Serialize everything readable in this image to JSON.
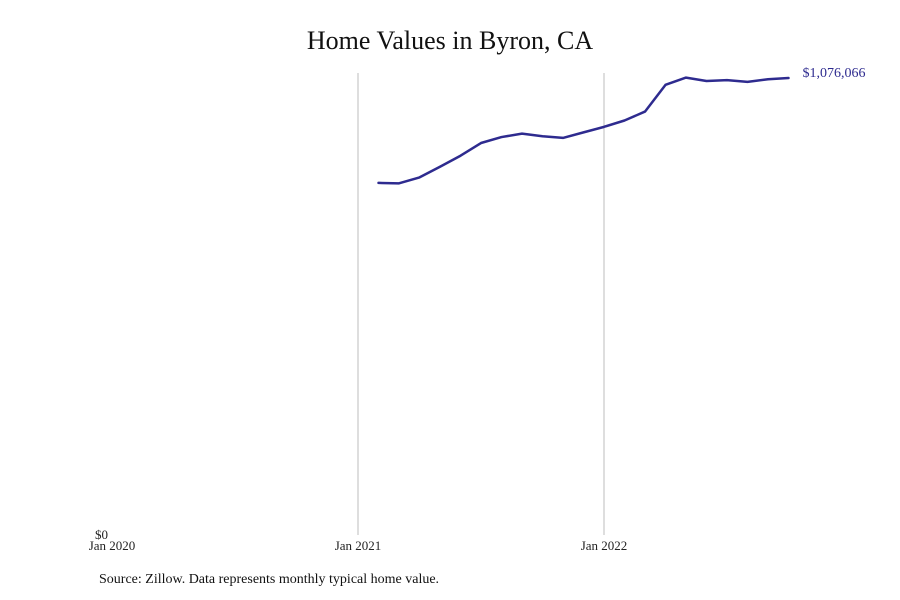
{
  "chart_data": {
    "type": "line",
    "title": "Home Values in Byron, CA",
    "xlabel": "",
    "ylabel": "",
    "x_ticks": [
      "Jan 2020",
      "Jan 2021",
      "Jan 2022"
    ],
    "y_ticks": [
      "$0"
    ],
    "ylim": [
      0,
      1076066
    ],
    "grid": "vertical lines at year ticks",
    "series": [
      {
        "color": "#2e2b8f",
        "end_label": "$1,076,066",
        "points": [
          {
            "x": "2021-02",
            "y": 829000
          },
          {
            "x": "2021-03",
            "y": 828000
          },
          {
            "x": "2021-04",
            "y": 842000
          },
          {
            "x": "2021-05",
            "y": 867000
          },
          {
            "x": "2021-06",
            "y": 893000
          },
          {
            "x": "2021-07",
            "y": 923000
          },
          {
            "x": "2021-08",
            "y": 937000
          },
          {
            "x": "2021-09",
            "y": 945000
          },
          {
            "x": "2021-10",
            "y": 939000
          },
          {
            "x": "2021-11",
            "y": 935000
          },
          {
            "x": "2021-12",
            "y": 948000
          },
          {
            "x": "2022-01",
            "y": 961000
          },
          {
            "x": "2022-02",
            "y": 976000
          },
          {
            "x": "2022-03",
            "y": 997000
          },
          {
            "x": "2022-04",
            "y": 1060000
          },
          {
            "x": "2022-05",
            "y": 1077000
          },
          {
            "x": "2022-06",
            "y": 1069000
          },
          {
            "x": "2022-07",
            "y": 1071000
          },
          {
            "x": "2022-08",
            "y": 1067000
          },
          {
            "x": "2022-09",
            "y": 1073000
          },
          {
            "x": "2022-10",
            "y": 1076066
          }
        ]
      }
    ]
  },
  "footer": {
    "source": "Source: Zillow. Data represents monthly typical home value."
  }
}
